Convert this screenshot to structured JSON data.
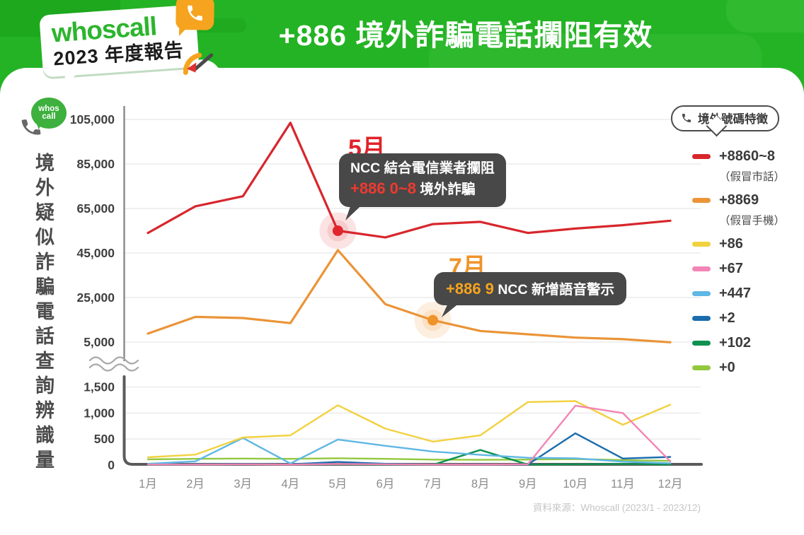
{
  "header": {
    "logo": {
      "brand": "whoscall",
      "subtitle": "2023 年度報告"
    },
    "title": "+886 境外詐騙電話攔阻有效"
  },
  "mini_logo": {
    "line1": "whos",
    "line2": "call"
  },
  "y_axis_title": "境外疑似詐騙電話查詢辨識量",
  "legend": {
    "title": "境外號碼特徵",
    "items": [
      {
        "label": "+8860~8",
        "sublabel": "（假冒市話）",
        "color": "#d7262c"
      },
      {
        "label": "+8869",
        "sublabel": "（假冒手機）",
        "color": "#ea9437"
      },
      {
        "label": "+86",
        "color": "#f2d13f"
      },
      {
        "label": "+67",
        "color": "#f285b5"
      },
      {
        "label": "+447",
        "color": "#5fb7e5"
      },
      {
        "label": "+2",
        "color": "#1a6cad"
      },
      {
        "label": "+102",
        "color": "#0e9150"
      },
      {
        "label": "+0",
        "color": "#93c83d"
      }
    ]
  },
  "annotations": {
    "may": {
      "month": "5月",
      "line1": "NCC 結合電信業者攔阻",
      "highlight": "+886 0~8",
      "rest": " 境外詐騙"
    },
    "july": {
      "month": "7月",
      "highlight": "+886 9",
      "rest": " NCC 新增語音警示"
    }
  },
  "footer": {
    "source": "資料來源：Whoscall (2023/1 - 2023/12)"
  },
  "chart_data": {
    "type": "line",
    "title": "+886 境外詐騙電話攔阻有效",
    "ylabel": "境外疑似詐騙電話查詢辨識量",
    "x": [
      "1月",
      "2月",
      "3月",
      "4月",
      "5月",
      "6月",
      "7月",
      "8月",
      "9月",
      "10月",
      "11月",
      "12月"
    ],
    "y_axis_break": true,
    "upper_axis_range": [
      2000,
      110000
    ],
    "lower_axis_range": [
      0,
      1700
    ],
    "grid": true,
    "legend_position": "right",
    "upper_ticks": [
      {
        "label": "105,000",
        "v": 105000
      },
      {
        "label": "85,000",
        "v": 85000
      },
      {
        "label": "65,000",
        "v": 65000
      },
      {
        "label": "45,000",
        "v": 45000
      },
      {
        "label": "25,000",
        "v": 25000
      },
      {
        "label": "5,000",
        "v": 5000
      }
    ],
    "lower_ticks": [
      {
        "label": "1,500",
        "v": 1500
      },
      {
        "label": "1,000",
        "v": 1000
      },
      {
        "label": "500",
        "v": 500
      },
      {
        "label": "0",
        "v": 0
      }
    ],
    "series": [
      {
        "name": "+0",
        "axis": "lower",
        "color": "#93c83d",
        "values": [
          110,
          120,
          125,
          120,
          130,
          120,
          105,
          100,
          105,
          115,
          95,
          80
        ]
      },
      {
        "name": "+102",
        "axis": "lower",
        "color": "#0e9150",
        "values": [
          5,
          10,
          15,
          10,
          15,
          10,
          5,
          290,
          10,
          15,
          20,
          10
        ]
      },
      {
        "name": "+2",
        "axis": "lower",
        "color": "#1a6cad",
        "values": [
          10,
          15,
          20,
          15,
          60,
          25,
          10,
          15,
          10,
          610,
          125,
          155
        ]
      },
      {
        "name": "+447",
        "axis": "lower",
        "color": "#5fb7e5",
        "values": [
          25,
          70,
          520,
          30,
          490,
          370,
          260,
          195,
          140,
          130,
          65,
          35
        ]
      },
      {
        "name": "+86",
        "axis": "lower",
        "color": "#f2d13f",
        "values": [
          150,
          200,
          530,
          570,
          1150,
          700,
          450,
          570,
          1210,
          1230,
          775,
          1160
        ]
      },
      {
        "name": "+67",
        "axis": "lower",
        "color": "#f285b5",
        "values": [
          10,
          10,
          15,
          10,
          20,
          15,
          10,
          10,
          15,
          1140,
          1000,
          70
        ]
      },
      {
        "name": "+8869（假冒手機）",
        "axis": "upper",
        "color": "#ea9437",
        "values": [
          8800,
          16300,
          15800,
          13500,
          46300,
          22000,
          14800,
          10000,
          8500,
          7000,
          6300,
          4900
        ]
      },
      {
        "name": "+8860~8（假冒市話）",
        "axis": "upper",
        "color": "#d7262c",
        "values": [
          54000,
          66000,
          70500,
          103500,
          55000,
          52000,
          58000,
          59000,
          54000,
          56000,
          57500,
          59500
        ]
      }
    ],
    "highlight_points": [
      {
        "series": "+8860~8（假冒市話）",
        "month_index": 4,
        "dot": "#e0262c",
        "halo": "rgba(225,37,44,0.13)"
      },
      {
        "series": "+8869（假冒手機）",
        "month_index": 6,
        "dot": "#f0932a",
        "halo": "rgba(242,148,45,0.15)"
      }
    ]
  }
}
